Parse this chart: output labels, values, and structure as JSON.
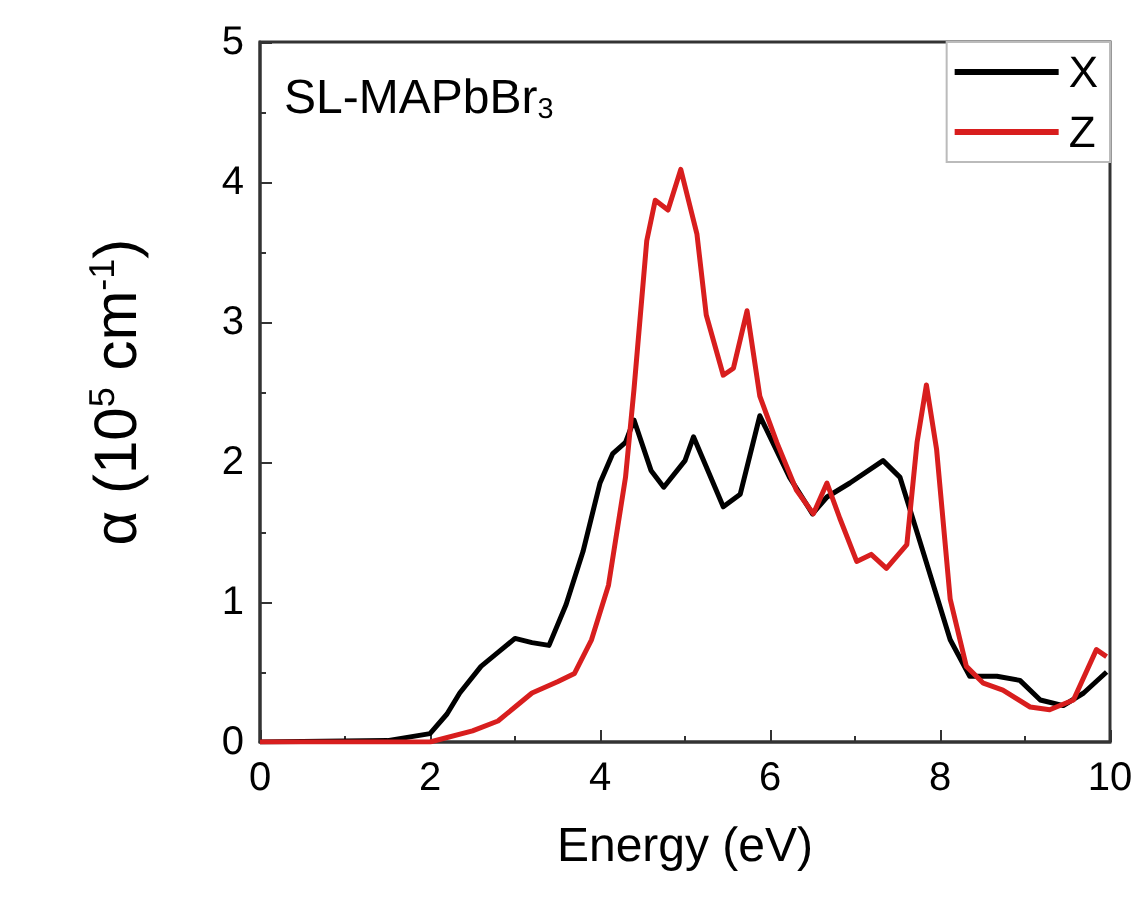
{
  "chart_data": {
    "type": "line",
    "xlabel": "Energy (eV)",
    "ylabel": "α (10$^{5}$ cm$^{-1}$)",
    "annotations": [
      "SL-MAPbBr$_{3}$"
    ],
    "xlim": [
      0,
      10
    ],
    "xticks": [
      0,
      2,
      4,
      6,
      8,
      10
    ],
    "ylim": [
      0,
      5
    ],
    "yticks": [
      0,
      1,
      2,
      3,
      4,
      5
    ],
    "grid": false,
    "legend": "top right",
    "marker": "none",
    "line_style": "solid",
    "series": [
      {
        "name": "X",
        "color": "#000000",
        "x": [
          0,
          1.5,
          2.0,
          2.2,
          2.35,
          2.6,
          2.8,
          3.0,
          3.2,
          3.4,
          3.6,
          3.8,
          4.0,
          4.15,
          4.3,
          4.4,
          4.6,
          4.75,
          5.0,
          5.1,
          5.45,
          5.65,
          5.88,
          6.23,
          6.5,
          6.67,
          6.94,
          7.33,
          7.53,
          7.8,
          8.12,
          8.35,
          8.67,
          8.94,
          9.18,
          9.45,
          9.69,
          9.96
        ],
        "values": [
          0,
          0.01,
          0.06,
          0.2,
          0.35,
          0.54,
          0.64,
          0.74,
          0.71,
          0.69,
          0.98,
          1.36,
          1.85,
          2.06,
          2.14,
          2.3,
          1.94,
          1.82,
          2.01,
          2.18,
          1.68,
          1.77,
          2.33,
          1.89,
          1.63,
          1.75,
          1.85,
          2.01,
          1.89,
          1.36,
          0.73,
          0.47,
          0.47,
          0.44,
          0.3,
          0.26,
          0.35,
          0.5
        ]
      },
      {
        "name": "Z",
        "color": "#d81e1e",
        "x": [
          0,
          2.0,
          2.5,
          2.8,
          3.0,
          3.2,
          3.5,
          3.7,
          3.9,
          4.1,
          4.3,
          4.4,
          4.55,
          4.65,
          4.8,
          4.95,
          5.14,
          5.25,
          5.45,
          5.57,
          5.73,
          5.88,
          6.08,
          6.31,
          6.51,
          6.67,
          6.82,
          7.02,
          7.19,
          7.37,
          7.61,
          7.73,
          7.84,
          7.96,
          8.12,
          8.31,
          8.51,
          8.74,
          9.06,
          9.29,
          9.57,
          9.84,
          9.96
        ],
        "values": [
          0,
          0,
          0.08,
          0.15,
          0.25,
          0.35,
          0.43,
          0.49,
          0.73,
          1.12,
          1.89,
          2.52,
          3.58,
          3.87,
          3.8,
          4.09,
          3.63,
          3.05,
          2.62,
          2.67,
          3.08,
          2.47,
          2.14,
          1.8,
          1.63,
          1.85,
          1.6,
          1.29,
          1.34,
          1.24,
          1.41,
          2.14,
          2.55,
          2.09,
          1.02,
          0.54,
          0.42,
          0.37,
          0.25,
          0.23,
          0.3,
          0.66,
          0.61
        ]
      }
    ]
  }
}
